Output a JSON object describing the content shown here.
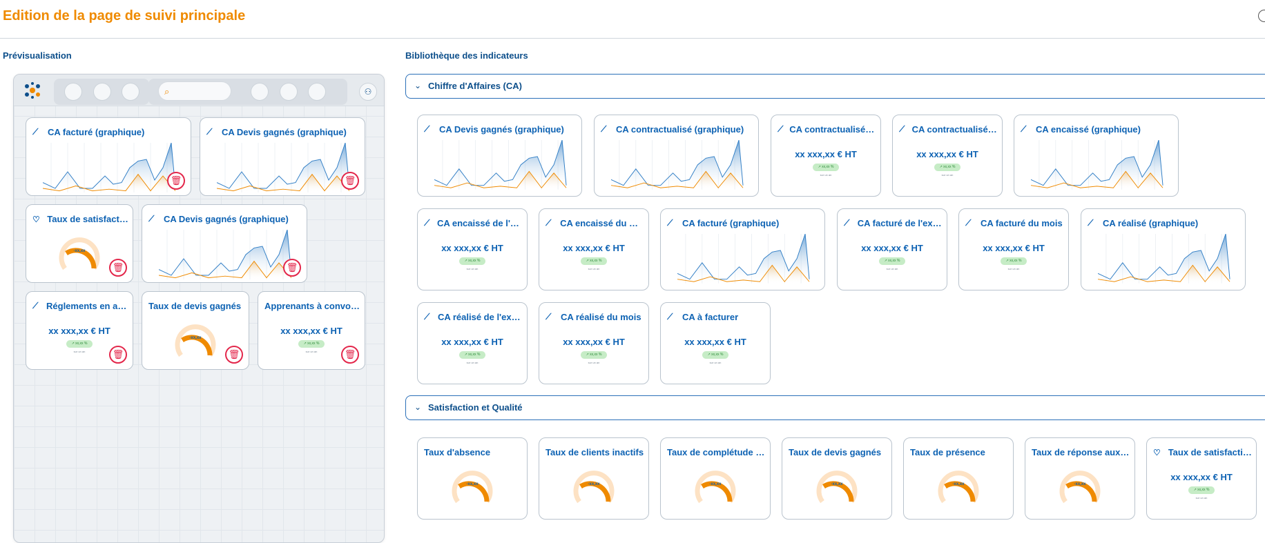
{
  "header": {
    "title": "Edition de la page de suivi principale"
  },
  "preview": {
    "label": "Prévisualisation",
    "cards": [
      {
        "title": "CA facturé (graphique)",
        "type": "chart",
        "icon": "line-chart-icon"
      },
      {
        "title": "CA Devis gagnés (graphique)",
        "type": "chart",
        "icon": "line-chart-icon"
      },
      {
        "title": "Taux de satisfaction",
        "type": "gauge",
        "icon": "heart-icon",
        "gauge_value": "-xx,xx"
      },
      {
        "title": "CA Devis gagnés (graphique)",
        "type": "chart",
        "icon": "line-chart-icon"
      },
      {
        "title": "Réglements en attente",
        "type": "kpi",
        "icon": "line-chart-icon",
        "value": "xx xxx,xx € HT",
        "badge": "↗ xx,xx %",
        "sub": "sur un an"
      },
      {
        "title": "Taux de devis gagnés",
        "type": "gauge",
        "icon": "",
        "gauge_value": "-xx,xx"
      },
      {
        "title": "Apprenants à convoquer",
        "type": "kpi",
        "icon": "",
        "value": "xx xxx,xx € HT",
        "badge": "↗ xx,xx %",
        "sub": "sur un an"
      }
    ]
  },
  "library": {
    "label": "Bibliothèque des indicateurs",
    "groups": [
      {
        "name": "Chiffre d'Affaires (CA)",
        "cards": [
          {
            "title": "CA Devis gagnés (graphique)",
            "type": "chart",
            "icon": "line-chart-icon"
          },
          {
            "title": "CA contractualisé (graphique)",
            "type": "chart",
            "icon": "line-chart-icon"
          },
          {
            "title": "CA contractualisé de l'exercice",
            "type": "kpi",
            "icon": "line-chart-icon",
            "value": "xx xxx,xx € HT",
            "badge": "↗ xx,xx %",
            "sub": "sur un an"
          },
          {
            "title": "CA contractualisé du mois",
            "type": "kpi",
            "icon": "line-chart-icon",
            "value": "xx xxx,xx € HT",
            "badge": "↗ xx,xx %",
            "sub": "sur un an"
          },
          {
            "title": "CA encaissé (graphique)",
            "type": "chart",
            "icon": "line-chart-icon"
          },
          {
            "title": "CA encaissé de l'exercice",
            "type": "kpi",
            "icon": "line-chart-icon",
            "value": "xx xxx,xx € HT",
            "badge": "↗ xx,xx %",
            "sub": "sur un an"
          },
          {
            "title": "CA encaissé du mois",
            "type": "kpi",
            "icon": "line-chart-icon",
            "value": "xx xxx,xx € HT",
            "badge": "↗ xx,xx %",
            "sub": "sur un an"
          },
          {
            "title": "CA facturé (graphique)",
            "type": "chart",
            "icon": "line-chart-icon"
          },
          {
            "title": "CA facturé de l'exercice",
            "type": "kpi",
            "icon": "line-chart-icon",
            "value": "xx xxx,xx € HT",
            "badge": "↗ xx,xx %",
            "sub": "sur un an"
          },
          {
            "title": "CA facturé du mois",
            "type": "kpi",
            "icon": "line-chart-icon",
            "value": "xx xxx,xx € HT",
            "badge": "↗ xx,xx %",
            "sub": "sur un an"
          },
          {
            "title": "CA réalisé (graphique)",
            "type": "chart",
            "icon": "line-chart-icon"
          },
          {
            "title": "CA réalisé de l'exercice",
            "type": "kpi",
            "icon": "line-chart-icon",
            "value": "xx xxx,xx € HT",
            "badge": "↗ xx,xx %",
            "sub": "sur un an"
          },
          {
            "title": "CA réalisé du mois",
            "type": "kpi",
            "icon": "line-chart-icon",
            "value": "xx xxx,xx € HT",
            "badge": "↗ xx,xx %",
            "sub": "sur un an"
          },
          {
            "title": "CA à facturer",
            "type": "kpi",
            "icon": "line-chart-icon",
            "value": "xx xxx,xx € HT",
            "badge": "↗ xx,xx %",
            "sub": "sur un an"
          }
        ]
      },
      {
        "name": "Satisfaction et Qualité",
        "cards": [
          {
            "title": "Taux d'absence",
            "type": "gauge",
            "icon": "",
            "gauge_value": "-xx,xx"
          },
          {
            "title": "Taux de clients inactifs",
            "type": "gauge",
            "icon": "",
            "gauge_value": "-xx,xx"
          },
          {
            "title": "Taux de complétude des dossiers",
            "type": "gauge",
            "icon": "",
            "gauge_value": "-xx,xx"
          },
          {
            "title": "Taux de devis gagnés",
            "type": "gauge",
            "icon": "",
            "gauge_value": "-xx,xx"
          },
          {
            "title": "Taux de présence",
            "type": "gauge",
            "icon": "",
            "gauge_value": "-xx,xx"
          },
          {
            "title": "Taux de réponse aux questionnaires",
            "type": "gauge",
            "icon": "",
            "gauge_value": "-xx,xx"
          },
          {
            "title": "Taux de satisfaction",
            "type": "kpi",
            "icon": "heart-icon",
            "value": "xx xxx,xx € HT",
            "badge": "↗ xx,xx %",
            "sub": "sur un an"
          }
        ]
      }
    ]
  },
  "colors": {
    "accent": "#ef8a00",
    "primary": "#0d62b3",
    "danger": "#e3264a",
    "badge": "#c6ecc6"
  }
}
